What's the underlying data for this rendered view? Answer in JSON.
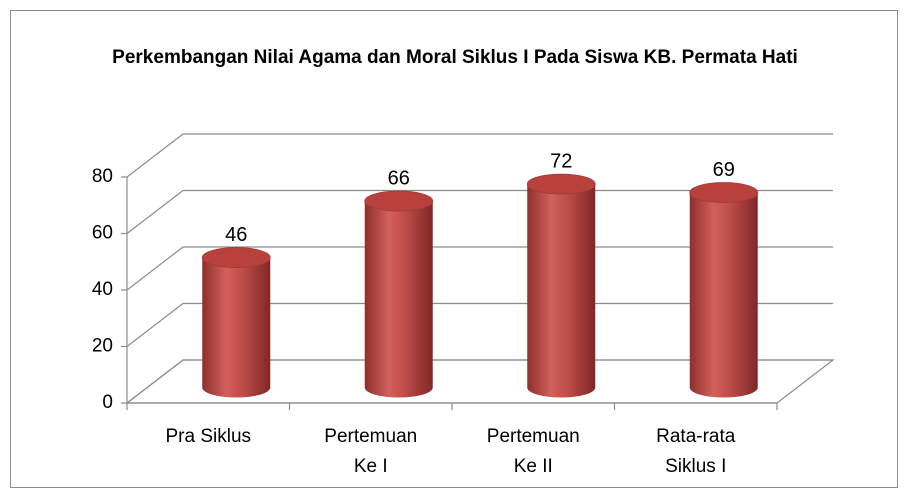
{
  "chart_data": {
    "type": "bar3d",
    "title": "Perkembangan Nilai Agama dan Moral Siklus I Pada Siswa KB. Permata Hati",
    "categories": [
      "Pra Siklus",
      "Pertemuan Ke I",
      "Pertemuan Ke II",
      "Rata-rata Siklus I"
    ],
    "values": [
      46,
      66,
      72,
      69
    ],
    "color": "#c0504d",
    "ylim": [
      0,
      80
    ],
    "yticks": [
      0,
      20,
      40,
      60,
      80
    ],
    "grid": true
  }
}
